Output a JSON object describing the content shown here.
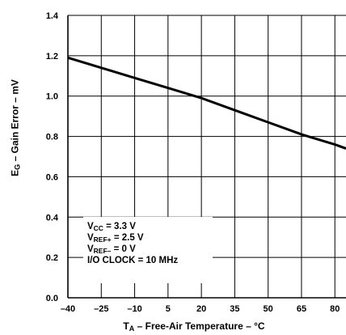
{
  "chart_data": {
    "type": "line",
    "title": "",
    "ylabel": {
      "prefix": "E",
      "sub": "G",
      "suffix": " – Gain Error – mV"
    },
    "xlabel": {
      "prefix": "T",
      "sub": "A",
      "suffix": " – Free-Air Temperature – °C"
    },
    "xlim": [
      -40,
      85
    ],
    "ylim": [
      0,
      1.4
    ],
    "grid": true,
    "x_ticks": [
      -40,
      -25,
      -10,
      5,
      20,
      35,
      50,
      65,
      80
    ],
    "y_ticks": [
      0.0,
      0.2,
      0.4,
      0.6,
      0.8,
      1.0,
      1.2,
      1.4
    ],
    "x_tick_labels": [
      "–40",
      "–25",
      "–10",
      "5",
      "20",
      "35",
      "50",
      "65",
      "80"
    ],
    "y_tick_labels": [
      "0.0",
      "0.2",
      "0.4",
      "0.6",
      "0.8",
      "1.0",
      "1.2",
      "1.4"
    ],
    "series": [
      {
        "x": [
          -40,
          -25,
          -10,
          5,
          20,
          35,
          50,
          65,
          80,
          85
        ],
        "y": [
          1.19,
          1.14,
          1.09,
          1.04,
          0.99,
          0.93,
          0.87,
          0.81,
          0.76,
          0.74
        ],
        "color": "#000000"
      }
    ],
    "annotation": {
      "lines": [
        {
          "prefix": "V",
          "sub": "CC",
          "suffix": " = 3.3 V"
        },
        {
          "prefix": "V",
          "sub": "REF+",
          "suffix": " = 2.5 V"
        },
        {
          "prefix": "V",
          "sub": "REF–",
          "suffix": " = 0 V"
        },
        {
          "prefix": "I/O CLOCK = 10 MHz",
          "sub": "",
          "suffix": ""
        }
      ]
    }
  }
}
